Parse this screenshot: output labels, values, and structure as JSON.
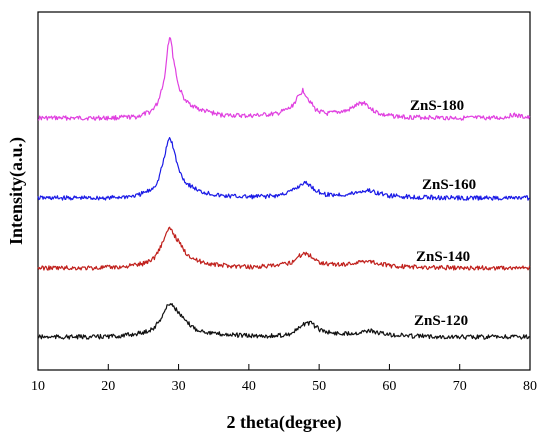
{
  "chart_data": {
    "type": "line",
    "xlabel": "2 theta(degree)",
    "ylabel": "Intensity(a.u.)",
    "xlim": [
      10,
      80
    ],
    "x_ticks": [
      10,
      20,
      30,
      40,
      50,
      60,
      70,
      80
    ],
    "y_ticks_shown": false,
    "grid": false,
    "legend": "none",
    "series_labels_inline": true,
    "series": [
      {
        "name": "ZnS-180",
        "color": "#e040e0",
        "x": [
          10,
          20,
          24,
          26,
          27,
          28,
          28.5,
          28.8,
          29.2,
          30,
          31,
          33,
          36,
          40,
          44,
          46,
          47,
          47.7,
          48.5,
          49.5,
          51,
          54,
          55.5,
          56.5,
          57.5,
          59,
          62,
          70,
          76,
          77.5,
          80
        ],
        "values": [
          0.0,
          0.0,
          0.01,
          0.06,
          0.14,
          0.38,
          0.71,
          0.8,
          0.6,
          0.3,
          0.16,
          0.08,
          0.03,
          0.02,
          0.04,
          0.1,
          0.2,
          0.27,
          0.18,
          0.08,
          0.04,
          0.07,
          0.13,
          0.15,
          0.08,
          0.03,
          0.01,
          0.0,
          0.0,
          0.03,
          0.0
        ]
      },
      {
        "name": "ZnS-160",
        "color": "#1a1ae6",
        "x": [
          10,
          20,
          24,
          26,
          27,
          28,
          28.5,
          28.8,
          29.2,
          30,
          31,
          33,
          36,
          40,
          44,
          46,
          47,
          47.8,
          48.6,
          49.5,
          51,
          54,
          56,
          57,
          58,
          60,
          63,
          70,
          80
        ],
        "values": [
          0.0,
          0.0,
          0.02,
          0.07,
          0.14,
          0.37,
          0.52,
          0.55,
          0.47,
          0.26,
          0.14,
          0.06,
          0.02,
          0.01,
          0.02,
          0.06,
          0.1,
          0.14,
          0.12,
          0.07,
          0.03,
          0.03,
          0.06,
          0.07,
          0.05,
          0.02,
          0.01,
          0.0,
          0.0
        ]
      },
      {
        "name": "ZnS-140",
        "color": "#c0201c",
        "x": [
          10,
          18,
          22,
          25,
          26.5,
          27.5,
          28.3,
          28.8,
          29.3,
          30,
          31,
          32.5,
          35,
          40,
          44,
          46,
          47,
          47.9,
          48.8,
          49.8,
          51,
          53,
          55.5,
          56.8,
          58,
          60,
          63,
          70,
          80
        ],
        "values": [
          0.0,
          0.0,
          0.01,
          0.04,
          0.09,
          0.2,
          0.32,
          0.36,
          0.31,
          0.24,
          0.14,
          0.07,
          0.03,
          0.01,
          0.02,
          0.05,
          0.1,
          0.14,
          0.11,
          0.06,
          0.04,
          0.03,
          0.05,
          0.07,
          0.05,
          0.02,
          0.01,
          0.0,
          0.0
        ]
      },
      {
        "name": "ZnS-120",
        "color": "#111111",
        "x": [
          10,
          18,
          22,
          25,
          26.5,
          27.5,
          28.3,
          28.8,
          29.3,
          30,
          31,
          32.5,
          35,
          40,
          44,
          46,
          47.2,
          48.1,
          49,
          50,
          51.5,
          53,
          55.5,
          57,
          58.3,
          60,
          63,
          70,
          80
        ],
        "values": [
          0.0,
          0.0,
          0.01,
          0.04,
          0.08,
          0.17,
          0.27,
          0.31,
          0.28,
          0.22,
          0.14,
          0.07,
          0.03,
          0.01,
          0.01,
          0.03,
          0.08,
          0.13,
          0.12,
          0.07,
          0.04,
          0.03,
          0.04,
          0.06,
          0.04,
          0.02,
          0.01,
          0.0,
          0.0
        ]
      }
    ]
  }
}
